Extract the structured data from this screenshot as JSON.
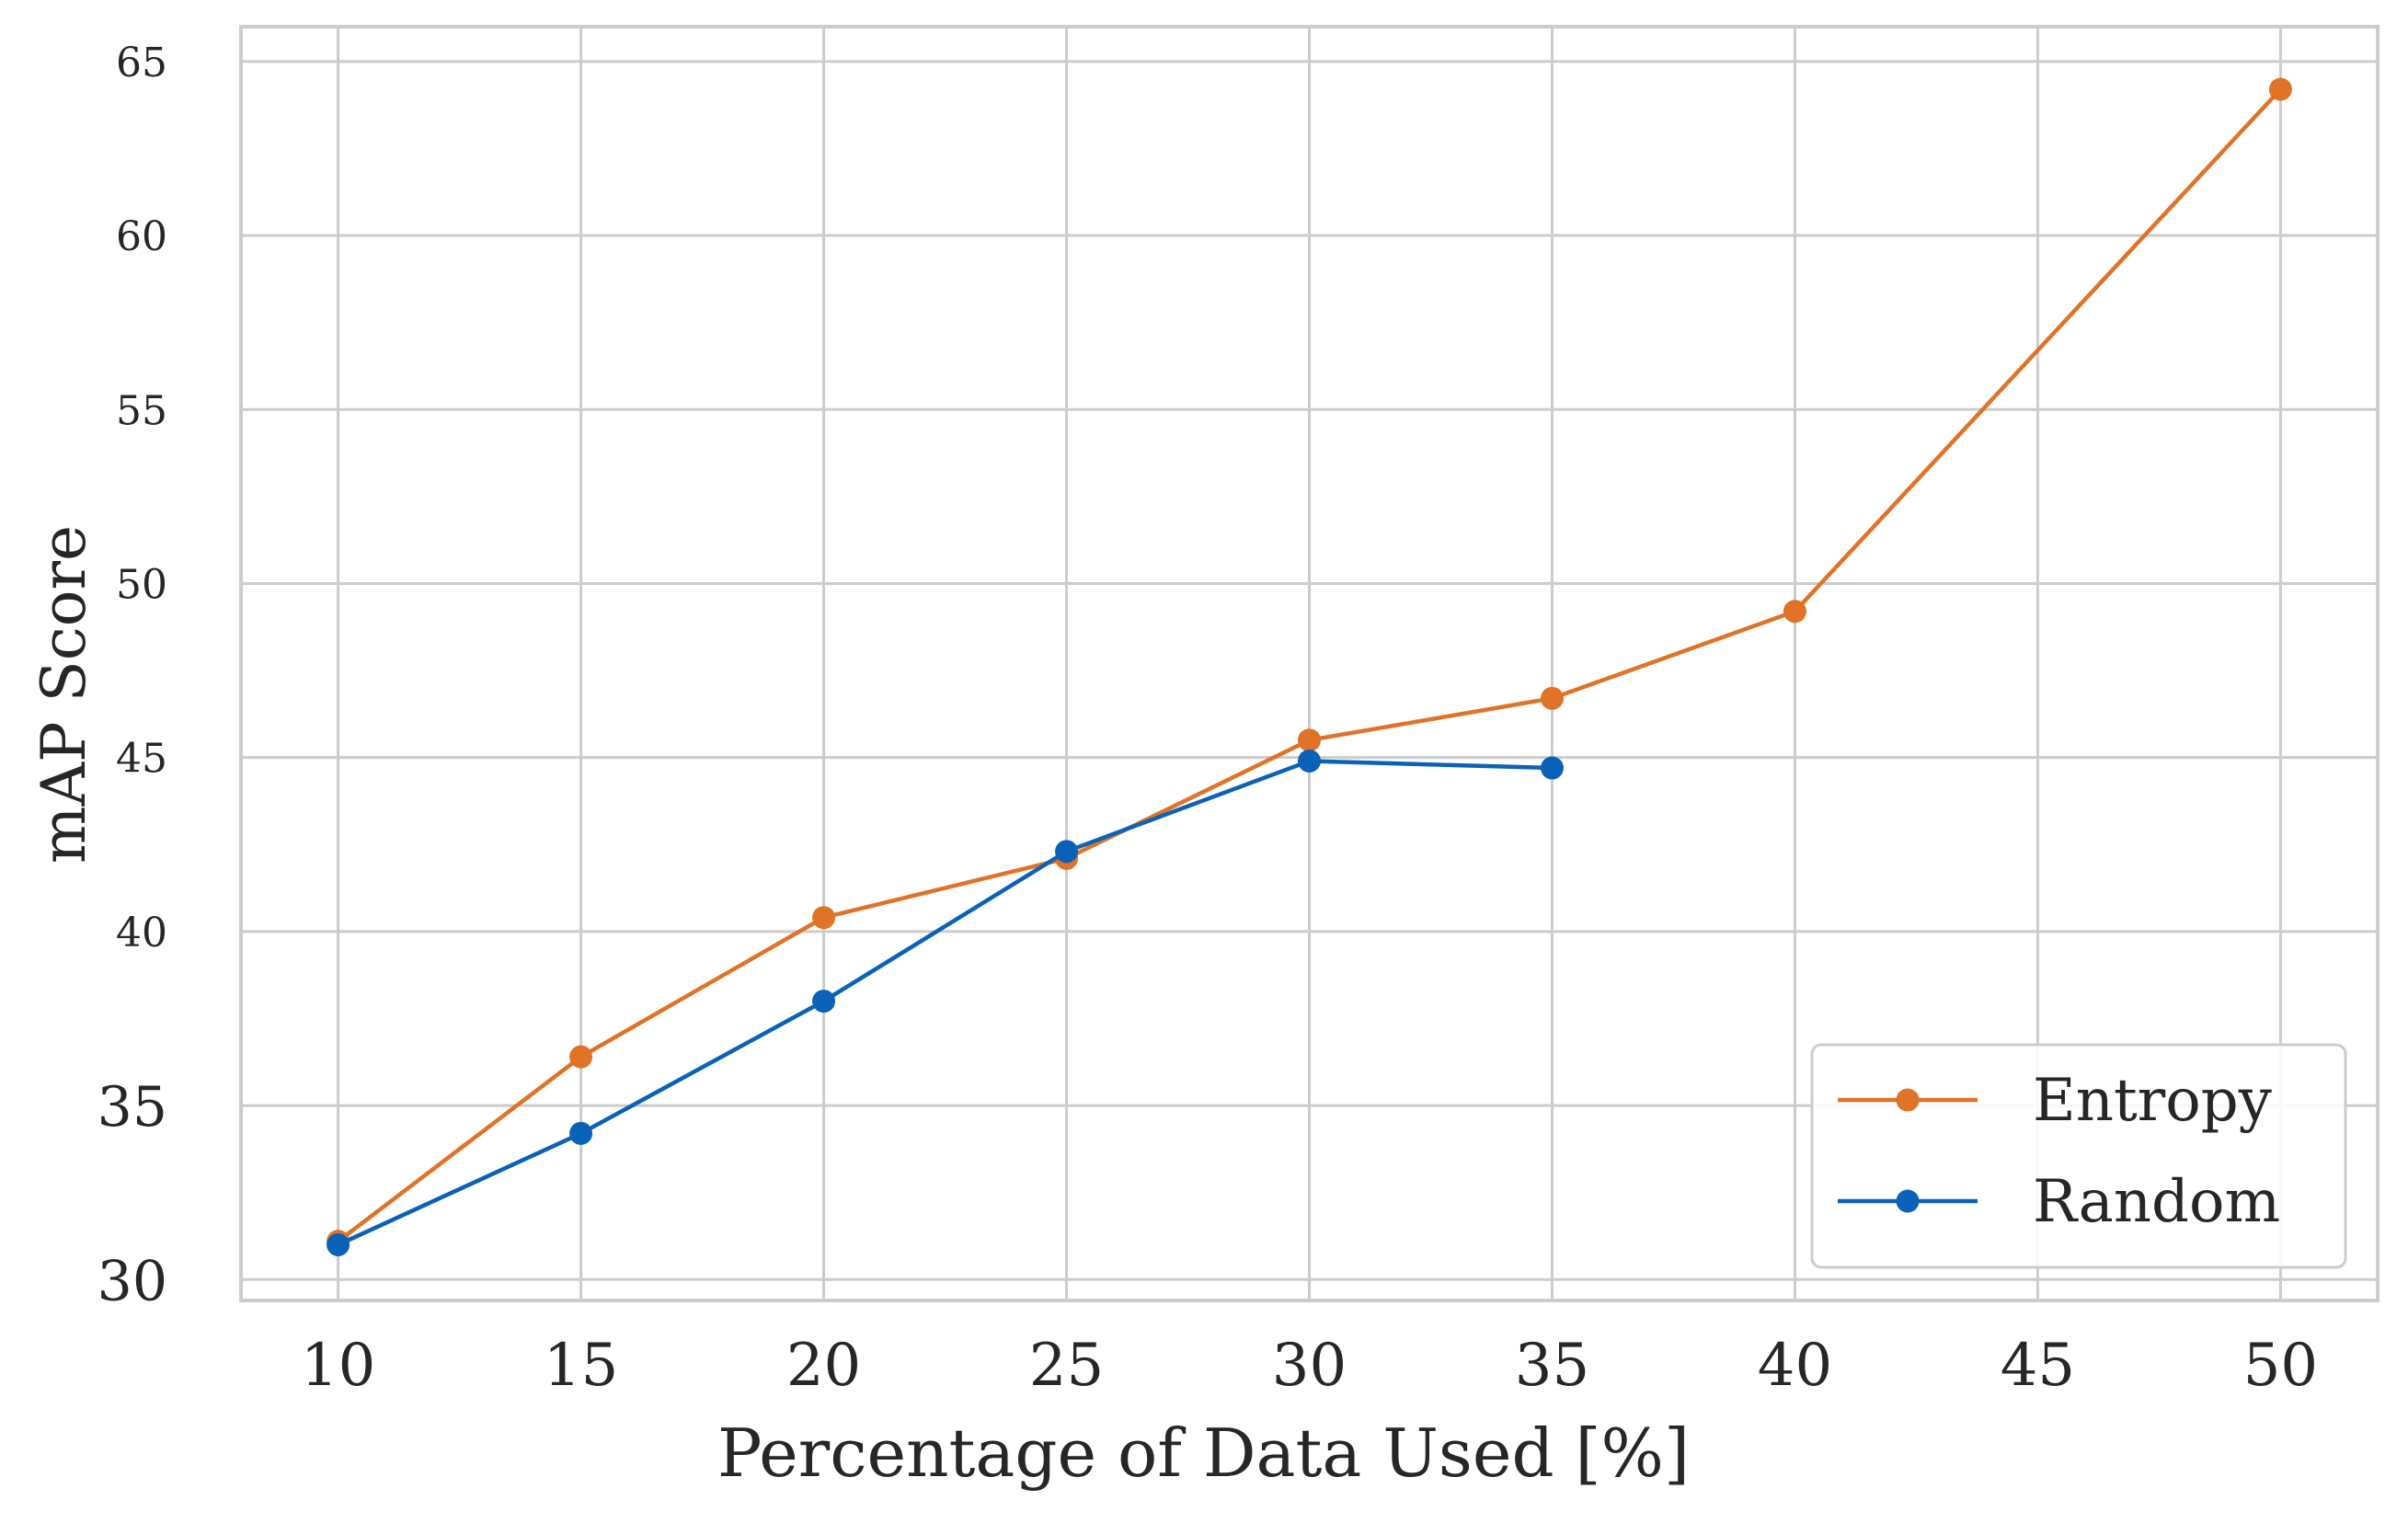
{
  "chart_data": {
    "type": "line",
    "title": "",
    "xlabel": "Percentage of Data Used [%]",
    "ylabel": "mAP Score",
    "xlim": [
      8,
      52
    ],
    "ylim": [
      29.4,
      66
    ],
    "x_ticks": [
      10,
      15,
      20,
      25,
      30,
      35,
      40,
      45,
      50
    ],
    "y_ticks": [
      30,
      35,
      40,
      45,
      50,
      55,
      60,
      65
    ],
    "grid": true,
    "legend_position": "bottom-right",
    "series": [
      {
        "name": "Entropy",
        "color": "#e07328",
        "x": [
          10,
          15,
          20,
          25,
          30,
          35,
          40,
          50
        ],
        "y": [
          31.1,
          36.4,
          40.4,
          42.1,
          45.5,
          46.7,
          49.2,
          64.2
        ]
      },
      {
        "name": "Random",
        "color": "#0a62b8",
        "x": [
          10,
          15,
          20,
          25,
          30,
          35
        ],
        "y": [
          31.0,
          34.2,
          38.0,
          42.3,
          44.9,
          44.7
        ]
      }
    ]
  }
}
